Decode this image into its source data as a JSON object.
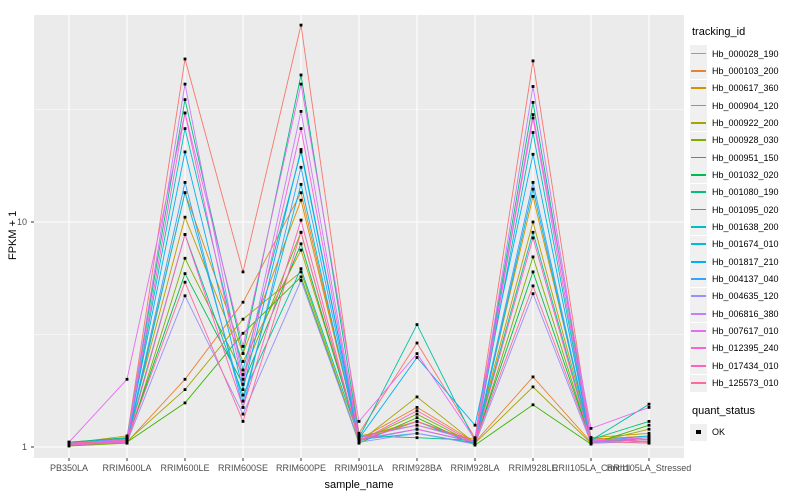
{
  "chart_data": {
    "type": "line",
    "xlabel": "sample_name",
    "ylabel": "FPKM + 1",
    "y_scale": "log10",
    "y_ticks": [
      1,
      10
    ],
    "y_minor_ticks": [
      3.162,
      31.62
    ],
    "ylim": [
      0.9,
      83
    ],
    "grid": "on",
    "panel_bg": "#EBEBEB",
    "grid_color": "#FFFFFF",
    "point_color": "#000000",
    "legend_position": "right",
    "legend_title": "tracking_id",
    "categories": [
      "PB350LA",
      "RRIM600LA",
      "RRIM600LE",
      "RRIM600SE",
      "RRIM600PE",
      "RRIM901LA",
      "RRIM928BA",
      "RRIM928LA",
      "RRIM928LE",
      "RRII105LA_Control",
      "RRII105LA_Stressed"
    ],
    "series": [
      {
        "name": "Hb_000028_190",
        "color": "#F8766D",
        "values": [
          1.05,
          1.1,
          53,
          6.0,
          75,
          1.15,
          2.9,
          1.1,
          52,
          1.1,
          1.05
        ]
      },
      {
        "name": "Hb_000103_200",
        "color": "#EA8331",
        "values": [
          1.02,
          1.05,
          2.0,
          4.4,
          13.5,
          1.08,
          1.5,
          1.05,
          2.05,
          1.05,
          1.08
        ]
      },
      {
        "name": "Hb_000617_360",
        "color": "#D89000",
        "values": [
          1.03,
          1.08,
          13.5,
          2.6,
          12.5,
          1.1,
          1.3,
          1.06,
          13.0,
          1.08,
          1.12
        ]
      },
      {
        "name": "Hb_000904_120",
        "color": "#C09B00",
        "values": [
          1.04,
          1.12,
          10.5,
          2.4,
          7.5,
          1.12,
          1.25,
          1.08,
          10.0,
          1.1,
          1.15
        ]
      },
      {
        "name": "Hb_000922_200",
        "color": "#A3A500",
        "values": [
          1.02,
          1.06,
          1.8,
          3.7,
          6.0,
          1.05,
          1.67,
          1.04,
          1.85,
          1.04,
          1.2
        ]
      },
      {
        "name": "Hb_000928_030",
        "color": "#7CAE00",
        "values": [
          1.01,
          1.04,
          6.9,
          2.1,
          9.0,
          1.06,
          1.4,
          1.03,
          7.0,
          1.05,
          1.1
        ]
      },
      {
        "name": "Hb_000951_150",
        "color": "#39B600",
        "values": [
          1.02,
          1.05,
          1.57,
          3.2,
          5.7,
          1.04,
          1.35,
          1.02,
          1.54,
          1.03,
          1.25
        ]
      },
      {
        "name": "Hb_001032_020",
        "color": "#00BB4E",
        "values": [
          1.03,
          1.07,
          5.9,
          1.9,
          8.0,
          1.08,
          1.2,
          1.05,
          6.0,
          1.06,
          1.08
        ]
      },
      {
        "name": "Hb_001080_190",
        "color": "#00BF7D",
        "values": [
          1.05,
          1.1,
          35,
          2.6,
          45,
          1.12,
          1.1,
          1.07,
          34,
          1.08,
          1.3
        ]
      },
      {
        "name": "Hb_001095_020",
        "color": "#00C1A3",
        "values": [
          1.04,
          1.08,
          8.8,
          1.7,
          6.2,
          1.1,
          3.5,
          1.06,
          9.0,
          1.07,
          1.55
        ]
      },
      {
        "name": "Hb_001638_200",
        "color": "#00BFC4",
        "values": [
          1.03,
          1.06,
          26,
          2.2,
          20.5,
          1.08,
          1.15,
          1.04,
          25,
          1.05,
          1.1
        ]
      },
      {
        "name": "Hb_001674_010",
        "color": "#00BAE0",
        "values": [
          1.02,
          1.05,
          13.5,
          1.6,
          14.7,
          1.06,
          1.3,
          1.03,
          14,
          1.04,
          1.06
        ]
      },
      {
        "name": "Hb_001817_210",
        "color": "#00B0F6",
        "values": [
          1.04,
          1.09,
          20.5,
          1.8,
          21,
          1.09,
          2.5,
          1.25,
          20,
          1.06,
          1.12
        ]
      },
      {
        "name": "Hb_004137_040",
        "color": "#35A2FF",
        "values": [
          1.03,
          1.07,
          15,
          1.5,
          17.5,
          1.07,
          1.2,
          1.05,
          15,
          1.05,
          1.08
        ]
      },
      {
        "name": "Hb_004635_120",
        "color": "#9590FF",
        "values": [
          1.02,
          1.05,
          4.7,
          1.4,
          5.5,
          1.05,
          1.15,
          1.03,
          4.8,
          1.04,
          1.06
        ]
      },
      {
        "name": "Hb_006816_380",
        "color": "#C77CFF",
        "values": [
          1.04,
          1.08,
          41,
          2.0,
          31,
          1.1,
          1.25,
          1.06,
          40,
          1.07,
          1.1
        ]
      },
      {
        "name": "Hb_007617_010",
        "color": "#E76BF3",
        "values": [
          1.05,
          2.0,
          30.5,
          2.8,
          41,
          1.3,
          2.6,
          1.08,
          30,
          1.21,
          1.5
        ]
      },
      {
        "name": "Hb_012395_240",
        "color": "#FA62DB",
        "values": [
          1.03,
          1.06,
          30.5,
          1.9,
          26,
          1.08,
          1.2,
          1.05,
          29,
          1.06,
          1.1
        ]
      },
      {
        "name": "Hb_017434_010",
        "color": "#FF62BC",
        "values": [
          1.02,
          1.05,
          8.8,
          1.5,
          10.2,
          1.06,
          1.45,
          1.04,
          8.5,
          1.05,
          1.08
        ]
      },
      {
        "name": "Hb_125573_010",
        "color": "#FF6A98",
        "values": [
          1.04,
          1.07,
          5.4,
          1.3,
          9.0,
          1.07,
          1.3,
          1.05,
          5.2,
          1.06,
          1.04
        ]
      }
    ],
    "quant_legend": {
      "title": "quant_status",
      "items": [
        {
          "label": "OK",
          "shape": "filled-square",
          "color": "#000000"
        }
      ]
    }
  }
}
